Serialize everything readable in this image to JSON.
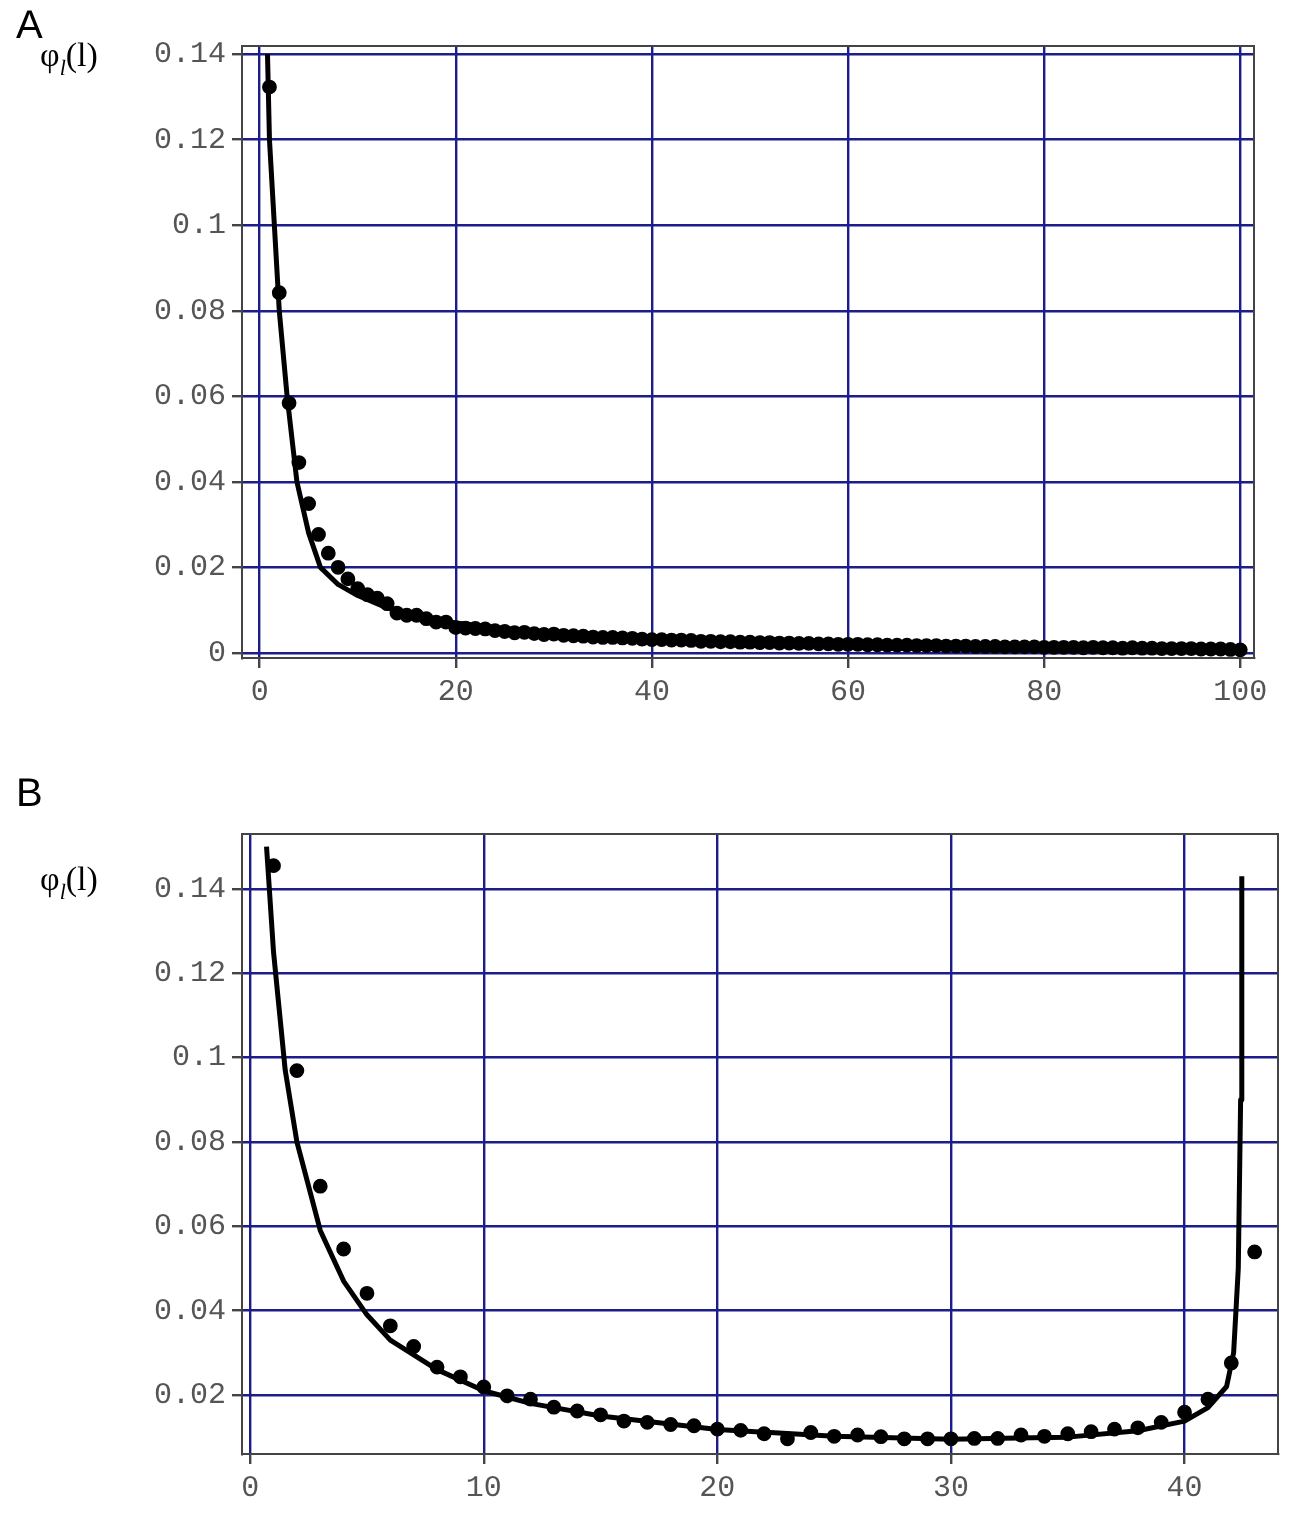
{
  "chart_data": [
    {
      "type": "scatter",
      "title": "A",
      "ylabel": "φ$_{l}$(l)",
      "xlim": [
        -1.8,
        101.4
      ],
      "ylim": [
        -0.0012,
        0.1419
      ],
      "xticks": [
        0,
        20,
        40,
        60,
        80,
        100
      ],
      "yticks": [
        0,
        0.02,
        0.04,
        0.06,
        0.08,
        0.1,
        0.12,
        0.14
      ],
      "grid": true,
      "legend": false,
      "series": [
        {
          "type": "scatter",
          "color": "#000000",
          "marker": "circle",
          "x": [
            1,
            2,
            3,
            4,
            5,
            6,
            7,
            8,
            9,
            10,
            11,
            12,
            13,
            14,
            15,
            16,
            17,
            18,
            19,
            20,
            21,
            22,
            23,
            24,
            25,
            26,
            27,
            28,
            29,
            30,
            31,
            32,
            33,
            34,
            35,
            36,
            37,
            38,
            39,
            40,
            41,
            42,
            43,
            44,
            45,
            46,
            47,
            48,
            49,
            50,
            51,
            52,
            53,
            54,
            55,
            56,
            57,
            58,
            59,
            60,
            61,
            62,
            63,
            64,
            65,
            66,
            67,
            68,
            69,
            70,
            71,
            72,
            73,
            74,
            75,
            76,
            77,
            78,
            79,
            80,
            81,
            82,
            83,
            84,
            85,
            86,
            87,
            88,
            89,
            90,
            91,
            92,
            93,
            94,
            95,
            96,
            97,
            98,
            99,
            100
          ],
          "values": [
            0.1323,
            0.0842,
            0.0584,
            0.0445,
            0.0349,
            0.0277,
            0.0233,
            0.02,
            0.0173,
            0.015,
            0.0136,
            0.0128,
            0.0115,
            0.0093,
            0.0088,
            0.0088,
            0.008,
            0.0072,
            0.0072,
            0.0059,
            0.0058,
            0.0057,
            0.0056,
            0.0052,
            0.005,
            0.0047,
            0.0048,
            0.0045,
            0.0043,
            0.0044,
            0.0041,
            0.004,
            0.0039,
            0.0037,
            0.0036,
            0.0036,
            0.0035,
            0.0034,
            0.0032,
            0.0031,
            0.0031,
            0.003,
            0.003,
            0.0029,
            0.0027,
            0.0027,
            0.0026,
            0.0026,
            0.0025,
            0.0025,
            0.0024,
            0.0024,
            0.0023,
            0.0023,
            0.0022,
            0.0022,
            0.0021,
            0.0021,
            0.002,
            0.002,
            0.002,
            0.0019,
            0.0019,
            0.0018,
            0.0018,
            0.0018,
            0.0017,
            0.0017,
            0.0017,
            0.0016,
            0.0016,
            0.0016,
            0.0015,
            0.0015,
            0.0015,
            0.0014,
            0.0014,
            0.0014,
            0.0014,
            0.0013,
            0.0013,
            0.0013,
            0.0013,
            0.0012,
            0.0013,
            0.0012,
            0.0012,
            0.0011,
            0.0012,
            0.0011,
            0.0011,
            0.001,
            0.001,
            0.001,
            0.001,
            0.0009,
            0.0009,
            0.0009,
            0.0008,
            0.0007
          ]
        },
        {
          "type": "line",
          "color": "#000000",
          "marker": "none",
          "x": [
            0.8,
            1,
            1.5,
            2,
            2.8,
            3.8,
            5,
            6.2,
            8,
            10,
            13,
            16,
            20,
            25,
            30,
            40,
            50,
            60,
            70,
            80,
            90,
            100
          ],
          "values": [
            0.14,
            0.12,
            0.1,
            0.08,
            0.06,
            0.04,
            0.028,
            0.02,
            0.016,
            0.0134,
            0.0105,
            0.0085,
            0.007,
            0.0057,
            0.0048,
            0.0036,
            0.0029,
            0.0024,
            0.0021,
            0.0018,
            0.0016,
            0.0014
          ]
        }
      ]
    },
    {
      "type": "scatter",
      "title": "B",
      "ylabel": "φ$_{l}$(l)",
      "xlim": [
        -0.35,
        44
      ],
      "ylim": [
        0.006,
        0.153
      ],
      "xticks": [
        0,
        10,
        20,
        30,
        40
      ],
      "yticks": [
        0.02,
        0.04,
        0.06,
        0.08,
        0.1,
        0.12,
        0.14
      ],
      "grid": true,
      "legend": false,
      "series": [
        {
          "type": "scatter",
          "color": "#000000",
          "marker": "circle",
          "x": [
            1,
            2,
            3,
            4,
            5,
            6,
            7,
            8,
            9,
            10,
            11,
            12,
            13,
            14,
            15,
            16,
            17,
            18,
            19,
            20,
            21,
            22,
            23,
            24,
            25,
            26,
            27,
            28,
            29,
            30,
            31,
            32,
            33,
            34,
            35,
            36,
            37,
            38,
            39,
            40,
            41,
            42,
            43
          ],
          "values": [
            0.1455,
            0.0969,
            0.0695,
            0.0546,
            0.0441,
            0.0364,
            0.0315,
            0.0266,
            0.0243,
            0.0219,
            0.0198,
            0.019,
            0.0171,
            0.0162,
            0.0153,
            0.0138,
            0.0135,
            0.013,
            0.0127,
            0.0119,
            0.0116,
            0.0108,
            0.0096,
            0.0111,
            0.0102,
            0.0105,
            0.0101,
            0.0096,
            0.0096,
            0.0096,
            0.0097,
            0.0097,
            0.0105,
            0.0102,
            0.0108,
            0.0113,
            0.0119,
            0.0122,
            0.0135,
            0.0159,
            0.019,
            0.0276,
            0.0539
          ]
        },
        {
          "type": "line",
          "color": "#000000",
          "marker": "none",
          "x": [
            0.7,
            1,
            1.5,
            2,
            3,
            4,
            5,
            6,
            8,
            10,
            12,
            15,
            20,
            25,
            30,
            35,
            38,
            40,
            41,
            41.8,
            42.1,
            42.3,
            42.4,
            42.45
          ],
          "values": [
            0.15,
            0.125,
            0.097,
            0.08,
            0.059,
            0.047,
            0.039,
            0.033,
            0.026,
            0.021,
            0.018,
            0.015,
            0.0118,
            0.0102,
            0.0095,
            0.01,
            0.0115,
            0.0138,
            0.017,
            0.022,
            0.03,
            0.05,
            0.09,
            0.143
          ]
        }
      ]
    }
  ]
}
